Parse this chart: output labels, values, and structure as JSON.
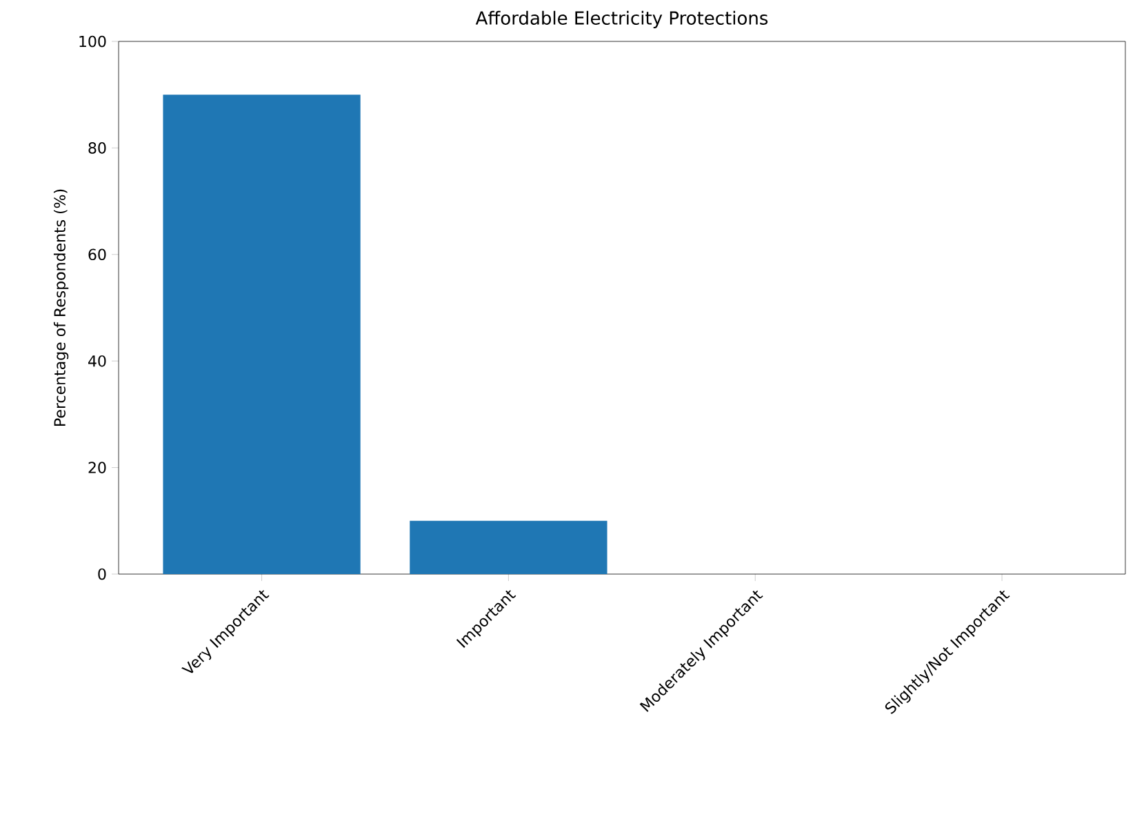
{
  "chart_data": {
    "type": "bar",
    "title": "Affordable Electricity Protections",
    "ylabel": "Percentage of Respondents (%)",
    "categories": [
      "Very Important",
      "Important",
      "Moderately Important",
      "Slightly/Not Important"
    ],
    "values": [
      90,
      10,
      0,
      0
    ],
    "color": "#1f77b4",
    "ylim": [
      0,
      100
    ],
    "yticks": [
      0,
      20,
      40,
      60,
      80,
      100
    ]
  }
}
